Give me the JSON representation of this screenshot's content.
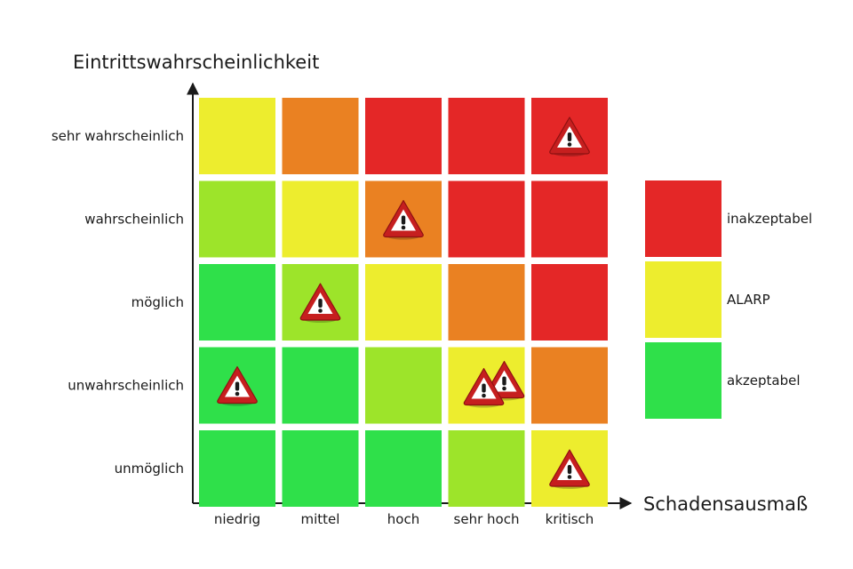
{
  "y_axis_label": "Eintrittswahrscheinlichkeit",
  "x_axis_label": "Schadensausmaß",
  "rows": [
    "sehr wahrscheinlich",
    "wahrscheinlich",
    "möglich",
    "unwahrscheinlich",
    "unmöglich"
  ],
  "columns": [
    "niedrig",
    "mittel",
    "hoch",
    "sehr hoch",
    "kritisch"
  ],
  "colors": {
    "red": "#e42727",
    "orange": "#ea8122",
    "yellow": "#eded2e",
    "lime": "#9de42a",
    "green": "#2fe04a",
    "warning_border": "#c61f1f",
    "warning_fill": "#ffffff",
    "warning_mark": "#1a1a1a"
  },
  "cells": [
    [
      "yellow",
      "orange",
      "red",
      "red",
      "red"
    ],
    [
      "lime",
      "yellow",
      "orange",
      "red",
      "red"
    ],
    [
      "green",
      "lime",
      "yellow",
      "orange",
      "red"
    ],
    [
      "green",
      "green",
      "lime",
      "yellow",
      "orange"
    ],
    [
      "green",
      "green",
      "green",
      "lime",
      "yellow"
    ]
  ],
  "warnings": [
    {
      "row": 0,
      "col": 4,
      "count": 1
    },
    {
      "row": 1,
      "col": 2,
      "count": 1
    },
    {
      "row": 2,
      "col": 1,
      "count": 1
    },
    {
      "row": 3,
      "col": 0,
      "count": 1
    },
    {
      "row": 3,
      "col": 3,
      "count": 2
    },
    {
      "row": 4,
      "col": 4,
      "count": 1
    }
  ],
  "warning_icon": "warning-triangle-icon",
  "legend": [
    {
      "label": "inakzeptabel",
      "color": "red"
    },
    {
      "label": "ALARP",
      "color": "yellow"
    },
    {
      "label": "akzeptabel",
      "color": "green"
    }
  ]
}
